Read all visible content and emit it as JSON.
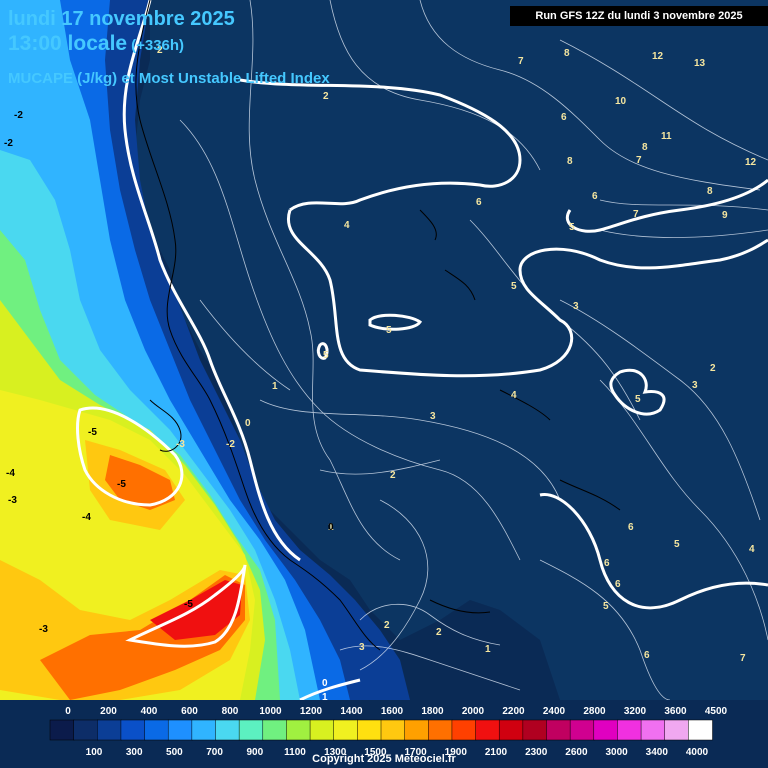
{
  "header": {
    "date": "lundi 17 novembre 2025",
    "time": "13:00 locale",
    "lead": "(+336h)",
    "parameter": "MUCAPE (J/kg) et Most Unstable Lifted Index"
  },
  "run_info": "Run GFS 12Z du lundi 3 novembre 2025",
  "copyright": "Copyright 2025 Meteociel.fr",
  "colors": {
    "ocean": "#0a2a55",
    "land": "#0c3562",
    "contour_thick": "#ffffff",
    "contour_thin": "#dfe8f5"
  },
  "legend": {
    "top_ticks": [
      "0",
      "200",
      "400",
      "600",
      "800",
      "1000",
      "1200",
      "1400",
      "1600",
      "1800",
      "2000",
      "2200",
      "2400",
      "2800",
      "3200",
      "3600",
      "4500"
    ],
    "bottom_ticks": [
      "100",
      "300",
      "500",
      "700",
      "900",
      "1100",
      "1300",
      "1500",
      "1700",
      "1900",
      "2100",
      "2300",
      "2600",
      "3000",
      "3400",
      "4000"
    ],
    "colors": [
      "#0b1b4b",
      "#0d2d68",
      "#0b3e96",
      "#0a50c8",
      "#0a6ae6",
      "#1e90ff",
      "#30b4ff",
      "#4ad8f0",
      "#5cf0c0",
      "#70f080",
      "#a0f040",
      "#d8f020",
      "#f0f020",
      "#ffe010",
      "#ffc810",
      "#ffa000",
      "#ff7000",
      "#ff4000",
      "#f01010",
      "#d00010",
      "#b00020",
      "#c00060",
      "#d00090",
      "#e000c0",
      "#f030e0",
      "#f070f0",
      "#f0a8f0",
      "#ffffff"
    ]
  },
  "contour_labels": [
    {
      "text": "-2"
    },
    {
      "text": "-2"
    },
    {
      "text": "2"
    },
    {
      "text": "2"
    },
    {
      "text": "7"
    },
    {
      "text": "8"
    },
    {
      "text": "12"
    },
    {
      "text": "13"
    },
    {
      "text": "10"
    },
    {
      "text": "6"
    },
    {
      "text": "8"
    },
    {
      "text": "7"
    },
    {
      "text": "11"
    },
    {
      "text": "8"
    },
    {
      "text": "12"
    },
    {
      "text": "6"
    },
    {
      "text": "6"
    },
    {
      "text": "7"
    },
    {
      "text": "8"
    },
    {
      "text": "9"
    },
    {
      "text": "4"
    },
    {
      "text": "5"
    },
    {
      "text": "5"
    },
    {
      "text": "3"
    },
    {
      "text": "5"
    },
    {
      "text": "5"
    },
    {
      "text": "3"
    },
    {
      "text": "2"
    },
    {
      "text": "5"
    },
    {
      "text": "1"
    },
    {
      "text": "1"
    },
    {
      "text": "4"
    },
    {
      "text": "0"
    },
    {
      "text": "3"
    },
    {
      "text": "-2"
    },
    {
      "text": "-3"
    },
    {
      "text": "-5"
    },
    {
      "text": "-4"
    },
    {
      "text": "-3"
    },
    {
      "text": "-5"
    },
    {
      "text": "-4"
    },
    {
      "text": "2"
    },
    {
      "text": "0"
    },
    {
      "text": "-5"
    },
    {
      "text": "-3"
    },
    {
      "text": "2"
    },
    {
      "text": "2"
    },
    {
      "text": "3"
    },
    {
      "text": "1"
    },
    {
      "text": "0"
    },
    {
      "text": "1"
    },
    {
      "text": "6"
    },
    {
      "text": "5"
    },
    {
      "text": "4"
    },
    {
      "text": "6"
    },
    {
      "text": "6"
    },
    {
      "text": "5"
    },
    {
      "text": "6"
    },
    {
      "text": "7"
    },
    {
      "text": "3"
    }
  ]
}
